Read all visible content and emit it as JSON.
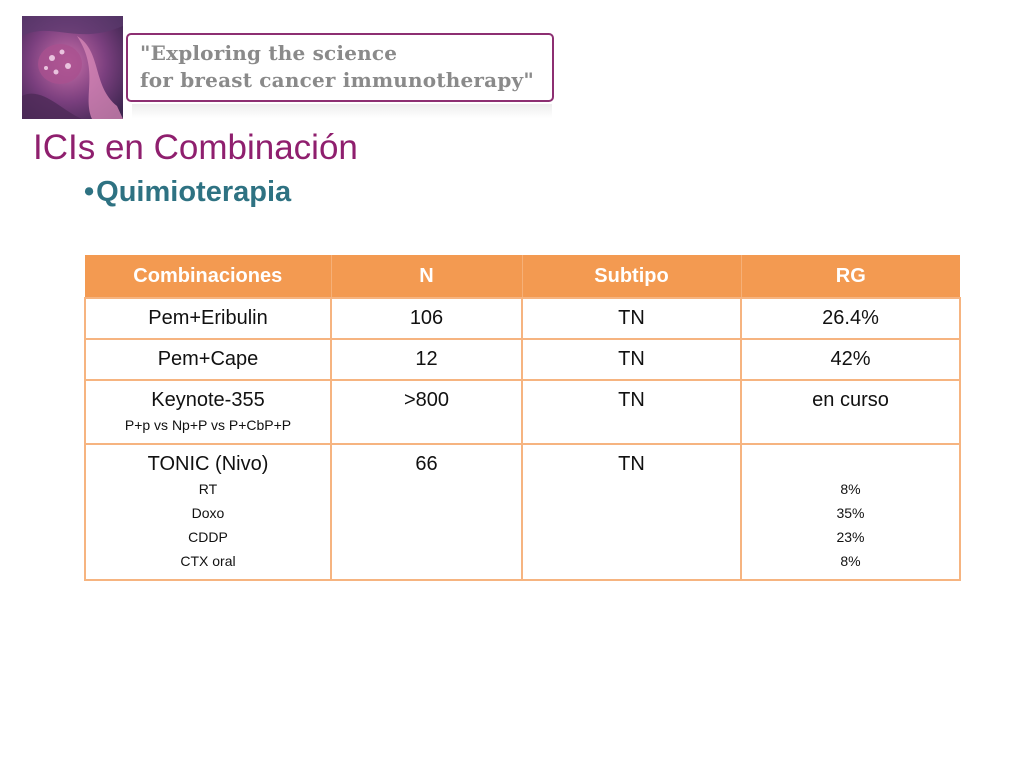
{
  "header": {
    "banner_line1": "\"Exploring the science",
    "banner_line2": "for breast cancer immunotherapy\""
  },
  "title": "ICIs en Combinación",
  "subtitle": {
    "bullet": "•",
    "text": "Quimioterapia"
  },
  "table": {
    "headers": [
      "Combinaciones",
      "N",
      "Subtipo",
      "RG"
    ],
    "rows": [
      {
        "combinacion": "Pem+Eribulin",
        "n": "106",
        "subtipo": "TN",
        "rg": "26.4%"
      },
      {
        "combinacion": "Pem+Cape",
        "n": "12",
        "subtipo": "TN",
        "rg": "42%"
      },
      {
        "combinacion": "Keynote-355",
        "detalle": "P+p vs Np+P vs P+CbP+P",
        "n": ">800",
        "subtipo": "TN",
        "rg": "en curso"
      },
      {
        "combinacion": "TONIC (Nivo)",
        "arms": [
          "RT",
          "Doxo",
          "CDDP",
          "CTX  oral"
        ],
        "n": "66",
        "subtipo": "TN",
        "rg_values": [
          "8%",
          "35%",
          "23%",
          "8%"
        ]
      }
    ]
  },
  "colors": {
    "title": "#8f1f6e",
    "subtitle": "#2e7282",
    "table_header": "#f39a51",
    "table_border": "#f6b480",
    "banner_border": "#8d2f72"
  }
}
